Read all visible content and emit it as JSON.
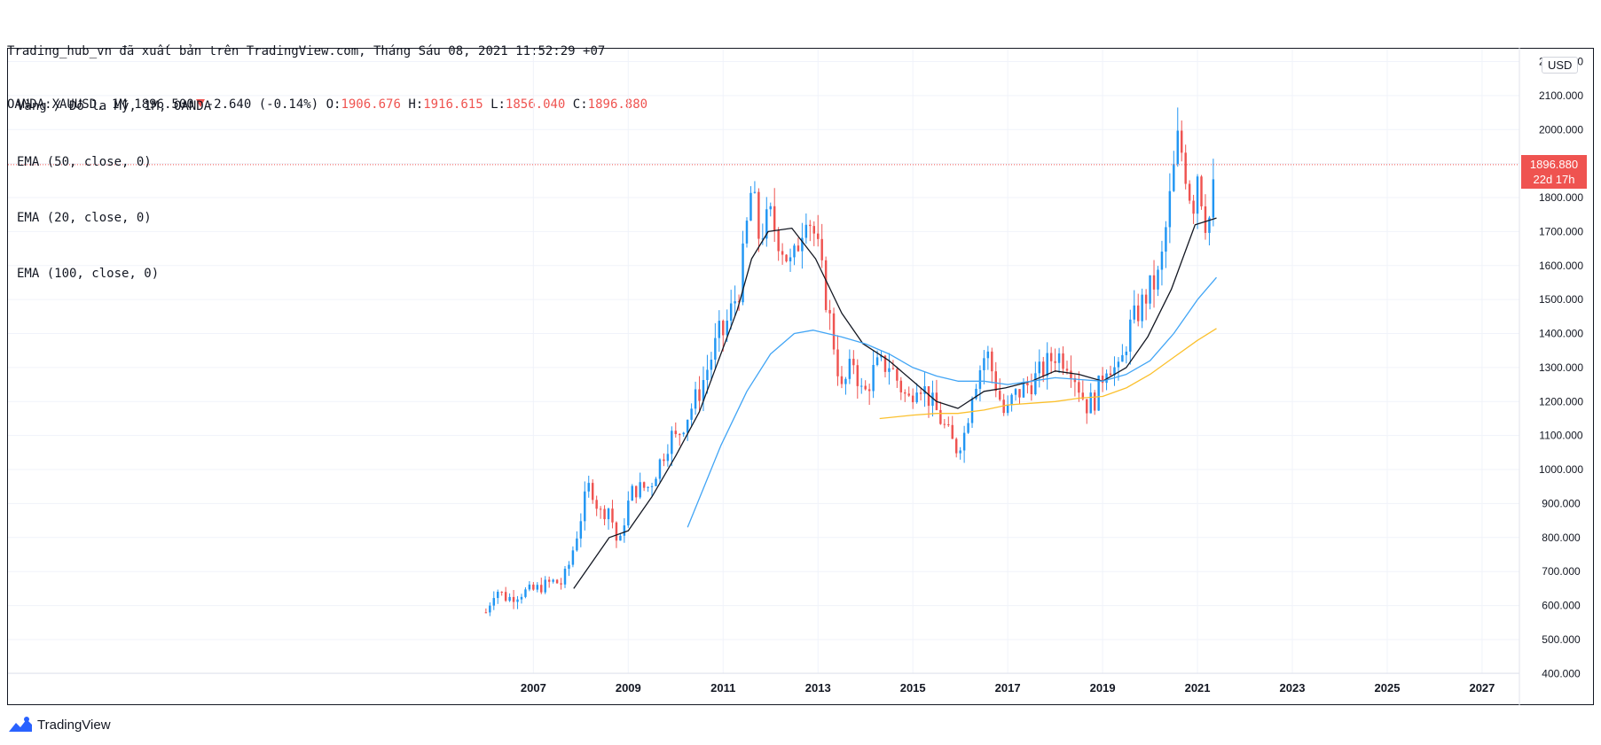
{
  "header": {
    "line1": "Trading_hub_vn đã xuất bản trên TradingView.com, Tháng Sáu 08, 2021 11:52:29 +07",
    "symbol": "OANDA:XAUUSD, 1M 1896.500",
    "change": "-2.640 (-0.14%)",
    "o_label": "O:",
    "o_value": "1906.676",
    "h_label": "H:",
    "h_value": "1916.615",
    "l_label": "L:",
    "l_value": "1856.040",
    "c_label": "C:",
    "c_value": "1896.880"
  },
  "legend": {
    "title": "Vàng / Đô la Mỹ, 1M, OANDA",
    "ema1": "EMA (50, close, 0)",
    "ema2": "EMA (20, close, 0)",
    "ema3": "EMA (100, close, 0)"
  },
  "price_axis": {
    "currency": "USD",
    "last_price": "1896.880",
    "countdown": "22d 17h"
  },
  "footer": {
    "brand": "TradingView"
  },
  "colors": {
    "up": "#2196f3",
    "down": "#ef5350",
    "ema20": "#131722",
    "ema50": "#42a5f5",
    "ema100": "#fbc02d",
    "grid": "#f0f3fa",
    "price_line": "#ef5350"
  },
  "chart_data": {
    "type": "candlestick",
    "x_ticks": [
      "2007",
      "2009",
      "2011",
      "2013",
      "2015",
      "2017",
      "2019",
      "2021",
      "2023",
      "2025",
      "2027"
    ],
    "y_ticks": [
      "400.000",
      "500.000",
      "600.000",
      "700.000",
      "800.000",
      "900.000",
      "1000.000",
      "1100.000",
      "1200.000",
      "1300.000",
      "1400.000",
      "1500.000",
      "1600.000",
      "1700.000",
      "1800.000",
      "1900.000",
      "2000.000",
      "2100.000",
      "2200.000"
    ],
    "ylim": [
      380,
      2230
    ],
    "xlim": [
      2006.9,
      2027.45
    ],
    "last_price": 1896.88,
    "anchors": [
      [
        2006.0,
        580
      ],
      [
        2006.2,
        650
      ],
      [
        2006.45,
        620
      ],
      [
        2006.8,
        640
      ],
      [
        2007.0,
        645
      ],
      [
        2007.4,
        670
      ],
      [
        2007.6,
        665
      ],
      [
        2007.75,
        720
      ],
      [
        2007.9,
        800
      ],
      [
        2008.1,
        920
      ],
      [
        2008.2,
        960
      ],
      [
        2008.4,
        870
      ],
      [
        2008.6,
        890
      ],
      [
        2008.8,
        760
      ],
      [
        2008.95,
        880
      ],
      [
        2009.1,
        940
      ],
      [
        2009.45,
        950
      ],
      [
        2009.9,
        1100
      ],
      [
        2010.0,
        1090
      ],
      [
        2010.5,
        1230
      ],
      [
        2010.95,
        1410
      ],
      [
        2011.0,
        1400
      ],
      [
        2011.35,
        1540
      ],
      [
        2011.6,
        1830
      ],
      [
        2011.75,
        1690
      ],
      [
        2012.0,
        1740
      ],
      [
        2012.45,
        1590
      ],
      [
        2012.75,
        1770
      ],
      [
        2012.95,
        1680
      ],
      [
        2013.2,
        1480
      ],
      [
        2013.3,
        1400
      ],
      [
        2013.5,
        1230
      ],
      [
        2013.75,
        1320
      ],
      [
        2013.95,
        1210
      ],
      [
        2014.2,
        1300
      ],
      [
        2014.5,
        1310
      ],
      [
        2014.9,
        1200
      ],
      [
        2015.1,
        1270
      ],
      [
        2015.5,
        1170
      ],
      [
        2015.9,
        1060
      ],
      [
        2016.1,
        1110
      ],
      [
        2016.25,
        1235
      ],
      [
        2016.55,
        1350
      ],
      [
        2016.95,
        1150
      ],
      [
        2017.1,
        1210
      ],
      [
        2017.6,
        1270
      ],
      [
        2018.0,
        1340
      ],
      [
        2018.3,
        1320
      ],
      [
        2018.65,
        1190
      ],
      [
        2018.85,
        1210
      ],
      [
        2019.1,
        1320
      ],
      [
        2019.35,
        1280
      ],
      [
        2019.55,
        1410
      ],
      [
        2019.95,
        1520
      ],
      [
        2020.2,
        1570
      ],
      [
        2020.6,
        1980
      ],
      [
        2020.75,
        1880
      ],
      [
        2020.9,
        1770
      ],
      [
        2021.0,
        1880
      ],
      [
        2021.2,
        1710
      ],
      [
        2021.3,
        1770
      ],
      [
        2021.4,
        1910
      ]
    ],
    "ema_anchors": {
      "ema20": [
        [
          2007.85,
          650
        ],
        [
          2008.6,
          800
        ],
        [
          2009.0,
          820
        ],
        [
          2009.5,
          920
        ],
        [
          2010.0,
          1040
        ],
        [
          2010.5,
          1170
        ],
        [
          2010.9,
          1320
        ],
        [
          2011.3,
          1470
        ],
        [
          2011.6,
          1620
        ],
        [
          2011.95,
          1700
        ],
        [
          2012.45,
          1710
        ],
        [
          2012.95,
          1620
        ],
        [
          2013.5,
          1460
        ],
        [
          2013.95,
          1370
        ],
        [
          2014.5,
          1320
        ],
        [
          2015.0,
          1260
        ],
        [
          2015.5,
          1200
        ],
        [
          2015.95,
          1180
        ],
        [
          2016.5,
          1230
        ],
        [
          2016.95,
          1240
        ],
        [
          2017.5,
          1260
        ],
        [
          2018.0,
          1290
        ],
        [
          2018.5,
          1280
        ],
        [
          2019.0,
          1260
        ],
        [
          2019.5,
          1300
        ],
        [
          2019.95,
          1390
        ],
        [
          2020.45,
          1530
        ],
        [
          2020.95,
          1720
        ],
        [
          2021.4,
          1740
        ]
      ],
      "ema50": [
        [
          2010.25,
          830
        ],
        [
          2010.6,
          950
        ],
        [
          2010.95,
          1070
        ],
        [
          2011.5,
          1230
        ],
        [
          2012.0,
          1340
        ],
        [
          2012.5,
          1400
        ],
        [
          2012.9,
          1410
        ],
        [
          2013.5,
          1390
        ],
        [
          2014.0,
          1370
        ],
        [
          2014.5,
          1340
        ],
        [
          2015.0,
          1300
        ],
        [
          2015.5,
          1275
        ],
        [
          2015.95,
          1260
        ],
        [
          2016.5,
          1260
        ],
        [
          2017.0,
          1250
        ],
        [
          2017.5,
          1260
        ],
        [
          2018.0,
          1270
        ],
        [
          2018.5,
          1265
        ],
        [
          2019.0,
          1260
        ],
        [
          2019.5,
          1280
        ],
        [
          2020.0,
          1320
        ],
        [
          2020.5,
          1400
        ],
        [
          2021.0,
          1500
        ],
        [
          2021.4,
          1565
        ]
      ],
      "ema100": [
        [
          2014.3,
          1150
        ],
        [
          2015.0,
          1160
        ],
        [
          2015.5,
          1165
        ],
        [
          2015.95,
          1165
        ],
        [
          2016.5,
          1175
        ],
        [
          2017.0,
          1190
        ],
        [
          2017.5,
          1195
        ],
        [
          2018.0,
          1200
        ],
        [
          2018.5,
          1210
        ],
        [
          2019.0,
          1215
        ],
        [
          2019.5,
          1240
        ],
        [
          2020.0,
          1280
        ],
        [
          2020.5,
          1330
        ],
        [
          2021.0,
          1380
        ],
        [
          2021.4,
          1415
        ]
      ]
    }
  }
}
